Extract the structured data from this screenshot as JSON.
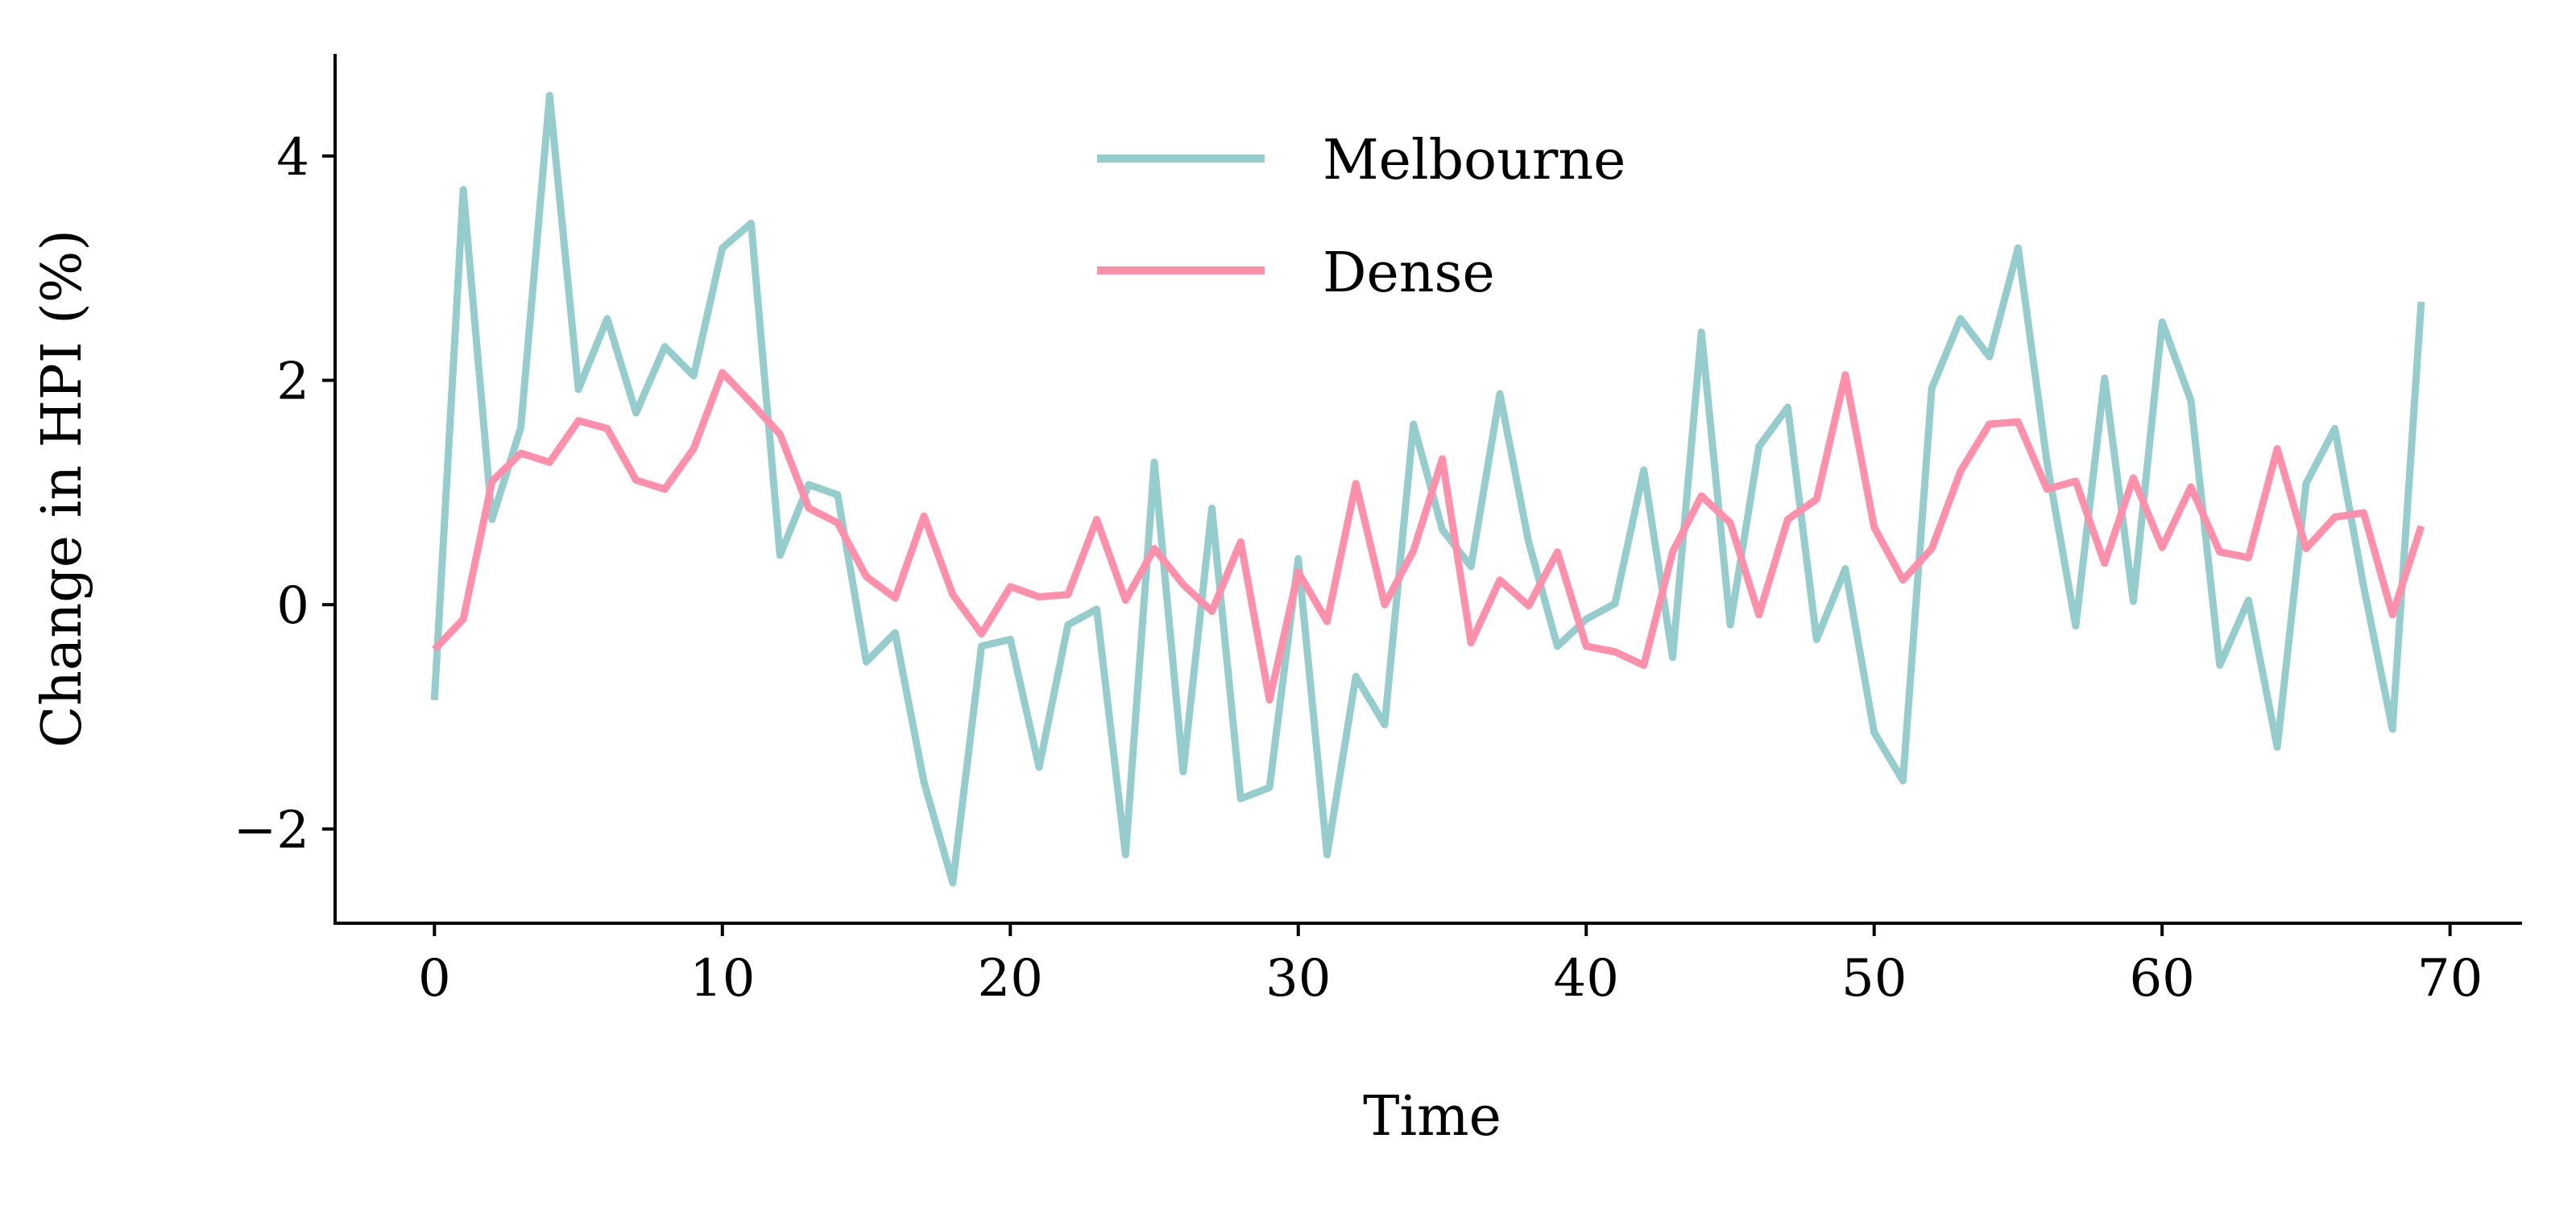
{
  "chart_data": {
    "type": "line",
    "title": "",
    "xlabel": "Time",
    "ylabel": "Change in HPI (%)",
    "xlim": [
      -3.45,
      72.5
    ],
    "ylim": [
      -2.84,
      4.91
    ],
    "xticks": [
      0,
      10,
      20,
      30,
      40,
      50,
      60,
      70
    ],
    "xtick_labels": [
      "0",
      "10",
      "20",
      "30",
      "40",
      "50",
      "60",
      "70"
    ],
    "yticks": [
      -2,
      0,
      2,
      4
    ],
    "ytick_labels": [
      "−2",
      "0",
      "2",
      "4"
    ],
    "grid": false,
    "legend_position": "top-center",
    "series": [
      {
        "name": "Melbourne",
        "color": "#94cdcc",
        "values": [
          -0.85,
          3.7,
          0.76,
          1.58,
          4.54,
          1.92,
          2.55,
          1.71,
          2.3,
          2.04,
          3.18,
          3.4,
          0.44,
          1.07,
          0.98,
          -0.51,
          -0.25,
          -1.58,
          -2.48,
          -0.37,
          -0.31,
          -1.45,
          -0.18,
          -0.04,
          -2.23,
          1.27,
          -1.49,
          0.86,
          -1.73,
          -1.63,
          0.41,
          -2.23,
          -0.64,
          -1.07,
          1.61,
          0.67,
          0.34,
          1.88,
          0.56,
          -0.37,
          -0.13,
          0.01,
          1.2,
          -0.47,
          2.43,
          -0.18,
          1.41,
          1.76,
          -0.31,
          0.32,
          -1.14,
          -1.57,
          1.93,
          2.55,
          2.21,
          3.18,
          1.27,
          -0.19,
          2.02,
          0.03,
          2.52,
          1.82,
          -0.54,
          0.04,
          -1.27,
          1.08,
          1.57,
          0.16,
          -1.11,
          2.7
        ]
      },
      {
        "name": "Dense",
        "color": "#ff8fab",
        "values": [
          -0.4,
          -0.13,
          1.1,
          1.35,
          1.27,
          1.64,
          1.57,
          1.11,
          1.03,
          1.39,
          2.07,
          1.8,
          1.52,
          0.86,
          0.73,
          0.25,
          0.06,
          0.79,
          0.09,
          -0.26,
          0.16,
          0.07,
          0.09,
          0.76,
          0.04,
          0.5,
          0.18,
          -0.06,
          0.56,
          -0.85,
          0.29,
          -0.15,
          1.08,
          0.0,
          0.48,
          1.3,
          -0.34,
          0.22,
          -0.01,
          0.47,
          -0.37,
          -0.42,
          -0.54,
          0.47,
          0.97,
          0.73,
          -0.09,
          0.76,
          0.94,
          2.05,
          0.69,
          0.22,
          0.5,
          1.19,
          1.61,
          1.63,
          1.03,
          1.1,
          0.37,
          1.13,
          0.51,
          1.05,
          0.47,
          0.42,
          1.39,
          0.5,
          0.78,
          0.82,
          -0.09,
          0.7
        ]
      }
    ]
  }
}
